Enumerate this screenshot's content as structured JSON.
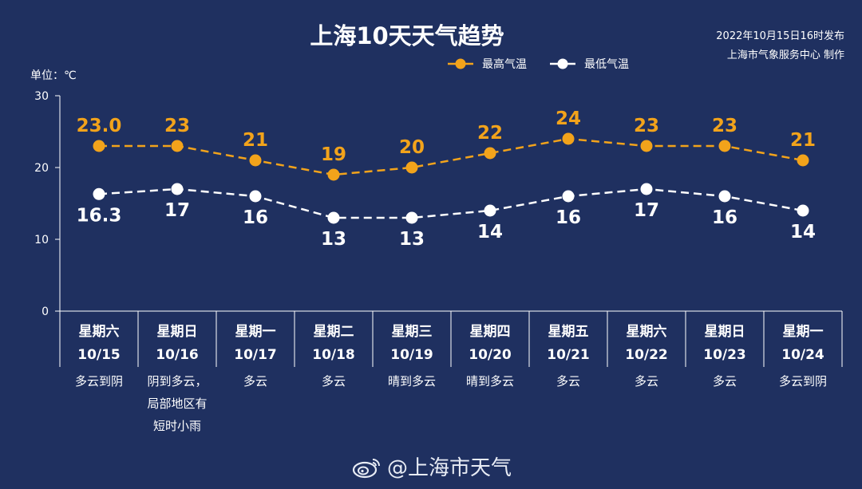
{
  "header": {
    "title": "上海10天天气趋势",
    "publish_line1": "2022年10月15日16时发布",
    "publish_line2": "上海市气象服务中心 制作",
    "unit": "单位：℃"
  },
  "legend": {
    "high": "最高气温",
    "low": "最低气温"
  },
  "watermark": "@上海市天气",
  "colors": {
    "background": "#1f3060",
    "high": "#f2a31b",
    "low": "#ffffff",
    "axis": "#ffffff"
  },
  "chart_data": {
    "type": "line",
    "ylim": [
      0,
      30
    ],
    "yticks": [
      "0",
      "10",
      "20",
      "30"
    ],
    "grid": false,
    "legend_position": "top-center",
    "categories": [
      {
        "weekday": "星期六",
        "date": "10/15",
        "weather": [
          "多云到阴"
        ]
      },
      {
        "weekday": "星期日",
        "date": "10/16",
        "weather": [
          "阴到多云，",
          "局部地区有",
          "短时小雨"
        ]
      },
      {
        "weekday": "星期一",
        "date": "10/17",
        "weather": [
          "多云"
        ]
      },
      {
        "weekday": "星期二",
        "date": "10/18",
        "weather": [
          "多云"
        ]
      },
      {
        "weekday": "星期三",
        "date": "10/19",
        "weather": [
          "晴到多云"
        ]
      },
      {
        "weekday": "星期四",
        "date": "10/20",
        "weather": [
          "晴到多云"
        ]
      },
      {
        "weekday": "星期五",
        "date": "10/21",
        "weather": [
          "多云"
        ]
      },
      {
        "weekday": "星期六",
        "date": "10/22",
        "weather": [
          "多云"
        ]
      },
      {
        "weekday": "星期日",
        "date": "10/23",
        "weather": [
          "多云"
        ]
      },
      {
        "weekday": "星期一",
        "date": "10/24",
        "weather": [
          "多云到阴"
        ]
      }
    ],
    "series": [
      {
        "name": "最高气温",
        "values": [
          23.0,
          23,
          21,
          19,
          20,
          22,
          24,
          23,
          23,
          21
        ],
        "labels": [
          "23.0",
          "23",
          "21",
          "19",
          "20",
          "22",
          "24",
          "23",
          "23",
          "21"
        ]
      },
      {
        "name": "最低气温",
        "values": [
          16.3,
          17,
          16,
          13,
          13,
          14,
          16,
          17,
          16,
          14
        ],
        "labels": [
          "16.3",
          "17",
          "16",
          "13",
          "13",
          "14",
          "16",
          "17",
          "16",
          "14"
        ]
      }
    ]
  }
}
